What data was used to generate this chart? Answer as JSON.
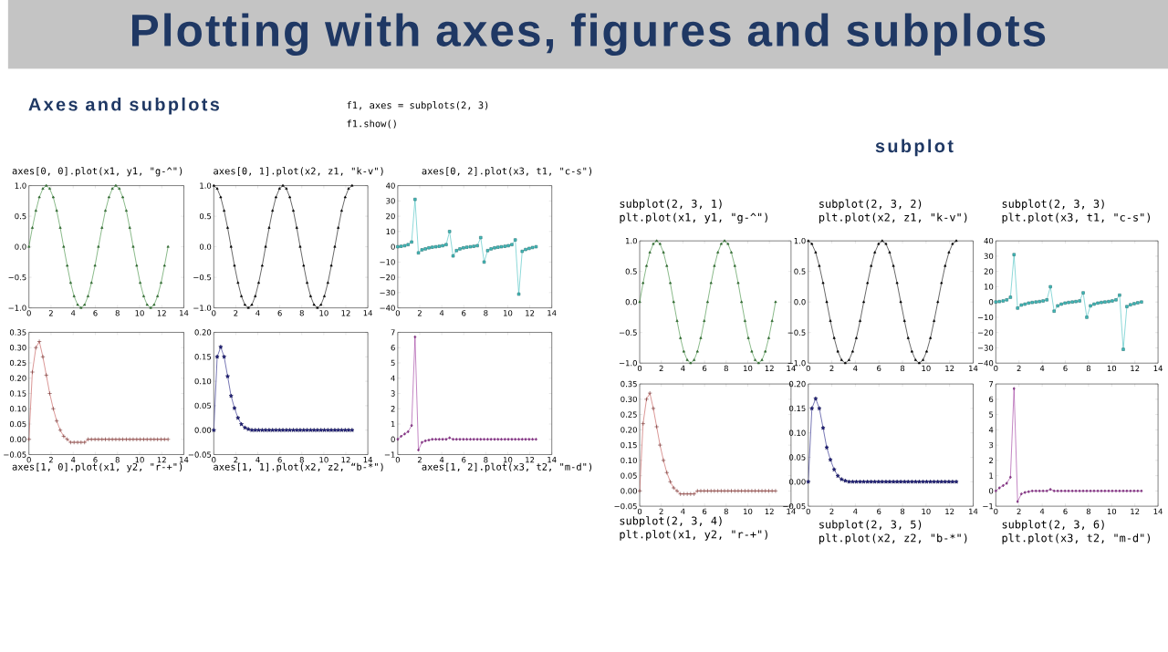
{
  "chart_data": [
    {
      "type": "other",
      "title": "Plotting with axes, figures and subplots",
      "annotations": [
        "Axes and subplots",
        "f1, axes = subplots(2, 3)",
        "f1.show()",
        "subplot"
      ]
    },
    {
      "type": "line",
      "title": "axes[0, 0].plot(x1, y1, \"g-^\")",
      "marker": "triangle",
      "xlim": [
        0,
        14
      ],
      "ylim": [
        -1,
        1
      ],
      "xticks": [
        0,
        2,
        4,
        6,
        8,
        10,
        12,
        14
      ],
      "yticks": [
        {
          "value": -1,
          "label": "−1.0"
        },
        {
          "value": -0.5,
          "label": "−0.5"
        },
        {
          "value": 0,
          "label": "0.0"
        },
        {
          "value": 0.5,
          "label": "0.5"
        },
        {
          "value": 1,
          "label": "1.0"
        }
      ],
      "x": [
        0,
        0.31,
        0.63,
        0.94,
        1.26,
        1.57,
        1.88,
        2.2,
        2.51,
        2.83,
        3.14,
        3.46,
        3.77,
        4.08,
        4.4,
        4.71,
        5.03,
        5.34,
        5.65,
        5.97,
        6.28,
        6.6,
        6.91,
        7.23,
        7.54,
        7.85,
        8.17,
        8.48,
        8.8,
        9.11,
        9.42,
        9.74,
        10.05,
        10.37,
        10.68,
        11.0,
        11.31,
        11.62,
        11.94,
        12.25,
        12.57
      ],
      "series": [
        {
          "color": "#3a8a3a",
          "values": [
            0,
            0.31,
            0.59,
            0.81,
            0.95,
            1,
            0.95,
            0.81,
            0.59,
            0.31,
            0,
            -0.31,
            -0.59,
            -0.81,
            -0.95,
            -1,
            -0.95,
            -0.81,
            -0.59,
            -0.31,
            0,
            0.31,
            0.59,
            0.81,
            0.95,
            1,
            0.95,
            0.81,
            0.59,
            0.31,
            0,
            -0.31,
            -0.59,
            -0.81,
            -0.95,
            -1,
            -0.95,
            -0.81,
            -0.59,
            -0.31,
            0
          ]
        }
      ]
    },
    {
      "type": "line",
      "title": "axes[0, 1].plot(x2, z1, \"k-v\")",
      "marker": "triangle_down",
      "xlim": [
        0,
        14
      ],
      "ylim": [
        -1,
        1
      ],
      "xticks": [
        0,
        2,
        4,
        6,
        8,
        10,
        12,
        14
      ],
      "yticks": [
        {
          "value": -1,
          "label": "−1.0"
        },
        {
          "value": -0.5,
          "label": "−0.5"
        },
        {
          "value": 0,
          "label": "0.0"
        },
        {
          "value": 0.5,
          "label": "0.5"
        },
        {
          "value": 1,
          "label": "1.0"
        }
      ],
      "x": [
        0,
        0.31,
        0.63,
        0.94,
        1.26,
        1.57,
        1.88,
        2.2,
        2.51,
        2.83,
        3.14,
        3.46,
        3.77,
        4.08,
        4.4,
        4.71,
        5.03,
        5.34,
        5.65,
        5.97,
        6.28,
        6.6,
        6.91,
        7.23,
        7.54,
        7.85,
        8.17,
        8.48,
        8.8,
        9.11,
        9.42,
        9.74,
        10.05,
        10.37,
        10.68,
        11.0,
        11.31,
        11.62,
        11.94,
        12.25,
        12.57
      ],
      "series": [
        {
          "color": "#000000",
          "values": [
            1,
            0.95,
            0.81,
            0.59,
            0.31,
            0,
            -0.31,
            -0.59,
            -0.81,
            -0.95,
            -1,
            -0.95,
            -0.81,
            -0.59,
            -0.31,
            0,
            0.31,
            0.59,
            0.81,
            0.95,
            1,
            0.95,
            0.81,
            0.59,
            0.31,
            0,
            -0.31,
            -0.59,
            -0.81,
            -0.95,
            -1,
            -0.95,
            -0.81,
            -0.59,
            -0.31,
            0,
            0.31,
            0.59,
            0.81,
            0.95,
            1
          ]
        }
      ]
    },
    {
      "type": "line",
      "title": "axes[0, 2].plot(x3, t1, \"c-s\")",
      "marker": "square",
      "xlim": [
        0,
        14
      ],
      "ylim": [
        -40,
        40
      ],
      "xticks": [
        0,
        2,
        4,
        6,
        8,
        10,
        12,
        14
      ],
      "yticks": [
        {
          "value": -40,
          "label": "−40"
        },
        {
          "value": -30,
          "label": "−30"
        },
        {
          "value": -20,
          "label": "−20"
        },
        {
          "value": -10,
          "label": "−10"
        },
        0,
        10,
        20,
        30,
        40
      ],
      "x": [
        0,
        0.31,
        0.63,
        0.94,
        1.26,
        1.57,
        1.88,
        2.2,
        2.51,
        2.83,
        3.14,
        3.46,
        3.77,
        4.08,
        4.4,
        4.71,
        5.03,
        5.34,
        5.65,
        5.97,
        6.28,
        6.6,
        6.91,
        7.23,
        7.54,
        7.85,
        8.17,
        8.48,
        8.8,
        9.11,
        9.42,
        9.74,
        10.05,
        10.37,
        10.68,
        11.0,
        11.31,
        11.62,
        11.94,
        12.25,
        12.57
      ],
      "series": [
        {
          "color": "#40bfbf",
          "values": [
            0,
            0.3,
            0.7,
            1.4,
            3.1,
            31,
            -4,
            -2,
            -1.4,
            -0.7,
            -0.3,
            0,
            0.3,
            0.7,
            1.4,
            10,
            -6,
            -2.5,
            -1.4,
            -0.7,
            -0.3,
            0,
            0.3,
            0.7,
            6,
            -10,
            -2.5,
            -1.4,
            -0.7,
            -0.3,
            0,
            0.3,
            0.7,
            1.4,
            4.5,
            -31,
            -3,
            -1.8,
            -1.1,
            -0.5,
            0
          ]
        }
      ]
    },
    {
      "type": "line",
      "title": "axes[1, 0].plot(x1, y2, \"r-+\")",
      "marker": "cross",
      "xlim": [
        0,
        14
      ],
      "ylim": [
        -0.05,
        0.35
      ],
      "xticks": [
        0,
        2,
        4,
        6,
        8,
        10,
        12,
        14
      ],
      "yticks": [
        {
          "value": -0.05,
          "label": "−0.05"
        },
        {
          "value": 0,
          "label": "0.00"
        },
        0.05,
        {
          "value": 0.1,
          "label": "0.10"
        },
        0.15,
        {
          "value": 0.2,
          "label": "0.20"
        },
        0.25,
        {
          "value": 0.3,
          "label": "0.30"
        },
        0.35
      ],
      "x": [
        0,
        0.31,
        0.63,
        0.94,
        1.26,
        1.57,
        1.88,
        2.2,
        2.51,
        2.83,
        3.14,
        3.46,
        3.77,
        4.08,
        4.4,
        4.71,
        5.03,
        5.34,
        5.65,
        5.97,
        6.28,
        6.6,
        6.91,
        7.23,
        7.54,
        7.85,
        8.17,
        8.48,
        8.8,
        9.11,
        9.42,
        9.74,
        10.05,
        10.37,
        10.68,
        11.0,
        11.31,
        11.62,
        11.94,
        12.25,
        12.57
      ],
      "series": [
        {
          "color": "#c0504d",
          "values": [
            0,
            0.22,
            0.3,
            0.32,
            0.27,
            0.21,
            0.15,
            0.1,
            0.06,
            0.03,
            0.01,
            0,
            -0.01,
            -0.01,
            -0.01,
            -0.01,
            -0.01,
            0,
            0,
            0,
            0,
            0,
            0,
            0,
            0,
            0,
            0,
            0,
            0,
            0,
            0,
            0,
            0,
            0,
            0,
            0,
            0,
            0,
            0,
            0,
            0
          ]
        }
      ]
    },
    {
      "type": "line",
      "title": "axes[1, 1].plot(x2, z2, “b-*\")",
      "marker": "star",
      "xlim": [
        0,
        14
      ],
      "ylim": [
        -0.05,
        0.2
      ],
      "xticks": [
        0,
        2,
        4,
        6,
        8,
        10,
        12,
        14
      ],
      "yticks": [
        {
          "value": -0.05,
          "label": "−0.05"
        },
        {
          "value": 0,
          "label": "0.00"
        },
        0.05,
        {
          "value": 0.1,
          "label": "0.10"
        },
        0.15,
        {
          "value": 0.2,
          "label": "0.20"
        }
      ],
      "x": [
        0,
        0.31,
        0.63,
        0.94,
        1.26,
        1.57,
        1.88,
        2.2,
        2.51,
        2.83,
        3.14,
        3.46,
        3.77,
        4.08,
        4.4,
        4.71,
        5.03,
        5.34,
        5.65,
        5.97,
        6.28,
        6.6,
        6.91,
        7.23,
        7.54,
        7.85,
        8.17,
        8.48,
        8.8,
        9.11,
        9.42,
        9.74,
        10.05,
        10.37,
        10.68,
        11.0,
        11.31,
        11.62,
        11.94,
        12.25,
        12.57
      ],
      "series": [
        {
          "color": "#1a1a80",
          "values": [
            0,
            0.15,
            0.17,
            0.15,
            0.11,
            0.07,
            0.045,
            0.025,
            0.012,
            0.005,
            0.002,
            0,
            0,
            0,
            0,
            0,
            0,
            0,
            0,
            0,
            0,
            0,
            0,
            0,
            0,
            0,
            0,
            0,
            0,
            0,
            0,
            0,
            0,
            0,
            0,
            0,
            0,
            0,
            0,
            0,
            0
          ]
        }
      ]
    },
    {
      "type": "line",
      "title": "axes[1, 2].plot(x3, t2, \"m-d\")",
      "marker": "diamond",
      "xlim": [
        0,
        14
      ],
      "ylim": [
        -1,
        7
      ],
      "xticks": [
        0,
        2,
        4,
        6,
        8,
        10,
        12,
        14
      ],
      "yticks": [
        {
          "value": -1,
          "label": "−1"
        },
        0,
        1,
        2,
        3,
        4,
        5,
        6,
        7
      ],
      "x": [
        0,
        0.31,
        0.63,
        0.94,
        1.26,
        1.57,
        1.88,
        2.2,
        2.51,
        2.83,
        3.14,
        3.46,
        3.77,
        4.08,
        4.4,
        4.71,
        5.03,
        5.34,
        5.65,
        5.97,
        6.28,
        6.6,
        6.91,
        7.23,
        7.54,
        7.85,
        8.17,
        8.48,
        8.8,
        9.11,
        9.42,
        9.74,
        10.05,
        10.37,
        10.68,
        11.0,
        11.31,
        11.62,
        11.94,
        12.25,
        12.57
      ],
      "series": [
        {
          "color": "#9b359b",
          "values": [
            0,
            0.2,
            0.35,
            0.5,
            0.9,
            6.7,
            -0.7,
            -0.2,
            -0.1,
            -0.05,
            0,
            0,
            0,
            0,
            0,
            0.1,
            0,
            0,
            0,
            0,
            0,
            0,
            0,
            0,
            0,
            0,
            0,
            0,
            0,
            0,
            0,
            0,
            0,
            0,
            0,
            0,
            0,
            0,
            0,
            0,
            0
          ]
        }
      ]
    },
    {
      "type": "line",
      "title": "subplot(2, 3, 1)",
      "subtitle": "plt.plot(x1, y1, \"g-^\")",
      "marker": "triangle",
      "xlim": [
        0,
        14
      ],
      "ylim": [
        -1,
        1
      ],
      "xticks": [
        0,
        2,
        4,
        6,
        8,
        10,
        12,
        14
      ],
      "yticks": [
        {
          "value": -1,
          "label": "−1.0"
        },
        {
          "value": -0.5,
          "label": "−0.5"
        },
        {
          "value": 0,
          "label": "0.0"
        },
        {
          "value": 0.5,
          "label": "0.5"
        },
        {
          "value": 1,
          "label": "1.0"
        }
      ],
      "x": [
        0,
        0.31,
        0.63,
        0.94,
        1.26,
        1.57,
        1.88,
        2.2,
        2.51,
        2.83,
        3.14,
        3.46,
        3.77,
        4.08,
        4.4,
        4.71,
        5.03,
        5.34,
        5.65,
        5.97,
        6.28,
        6.6,
        6.91,
        7.23,
        7.54,
        7.85,
        8.17,
        8.48,
        8.8,
        9.11,
        9.42,
        9.74,
        10.05,
        10.37,
        10.68,
        11.0,
        11.31,
        11.62,
        11.94,
        12.25,
        12.57
      ],
      "series": [
        {
          "color": "#3a8a3a",
          "values": [
            0,
            0.31,
            0.59,
            0.81,
            0.95,
            1,
            0.95,
            0.81,
            0.59,
            0.31,
            0,
            -0.31,
            -0.59,
            -0.81,
            -0.95,
            -1,
            -0.95,
            -0.81,
            -0.59,
            -0.31,
            0,
            0.31,
            0.59,
            0.81,
            0.95,
            1,
            0.95,
            0.81,
            0.59,
            0.31,
            0,
            -0.31,
            -0.59,
            -0.81,
            -0.95,
            -1,
            -0.95,
            -0.81,
            -0.59,
            -0.31,
            0
          ]
        }
      ]
    },
    {
      "type": "line",
      "title": "subplot(2, 3, 2)",
      "subtitle": "plt.plot(x2, z1, \"k-v\")",
      "marker": "triangle_down",
      "xlim": [
        0,
        14
      ],
      "ylim": [
        -1,
        1
      ],
      "xticks": [
        0,
        2,
        4,
        6,
        8,
        10,
        12,
        14
      ],
      "yticks": [
        {
          "value": -1,
          "label": "−1.0"
        },
        {
          "value": -0.5,
          "label": "−0.5"
        },
        {
          "value": 0,
          "label": "0.0"
        },
        {
          "value": 0.5,
          "label": "0.5"
        },
        {
          "value": 1,
          "label": "1.0"
        }
      ],
      "x": [
        0,
        0.31,
        0.63,
        0.94,
        1.26,
        1.57,
        1.88,
        2.2,
        2.51,
        2.83,
        3.14,
        3.46,
        3.77,
        4.08,
        4.4,
        4.71,
        5.03,
        5.34,
        5.65,
        5.97,
        6.28,
        6.6,
        6.91,
        7.23,
        7.54,
        7.85,
        8.17,
        8.48,
        8.8,
        9.11,
        9.42,
        9.74,
        10.05,
        10.37,
        10.68,
        11.0,
        11.31,
        11.62,
        11.94,
        12.25,
        12.57
      ],
      "series": [
        {
          "color": "#000000",
          "values": [
            1,
            0.95,
            0.81,
            0.59,
            0.31,
            0,
            -0.31,
            -0.59,
            -0.81,
            -0.95,
            -1,
            -0.95,
            -0.81,
            -0.59,
            -0.31,
            0,
            0.31,
            0.59,
            0.81,
            0.95,
            1,
            0.95,
            0.81,
            0.59,
            0.31,
            0,
            -0.31,
            -0.59,
            -0.81,
            -0.95,
            -1,
            -0.95,
            -0.81,
            -0.59,
            -0.31,
            0,
            0.31,
            0.59,
            0.81,
            0.95,
            1
          ]
        }
      ]
    },
    {
      "type": "line",
      "title": "subplot(2, 3, 3)",
      "subtitle": "plt.plot(x3, t1, \"c-s\")",
      "marker": "square",
      "xlim": [
        0,
        14
      ],
      "ylim": [
        -40,
        40
      ],
      "xticks": [
        0,
        2,
        4,
        6,
        8,
        10,
        12,
        14
      ],
      "yticks": [
        {
          "value": -40,
          "label": "−40"
        },
        {
          "value": -30,
          "label": "−30"
        },
        {
          "value": -20,
          "label": "−20"
        },
        {
          "value": -10,
          "label": "−10"
        },
        0,
        10,
        20,
        30,
        40
      ],
      "x": [
        0,
        0.31,
        0.63,
        0.94,
        1.26,
        1.57,
        1.88,
        2.2,
        2.51,
        2.83,
        3.14,
        3.46,
        3.77,
        4.08,
        4.4,
        4.71,
        5.03,
        5.34,
        5.65,
        5.97,
        6.28,
        6.6,
        6.91,
        7.23,
        7.54,
        7.85,
        8.17,
        8.48,
        8.8,
        9.11,
        9.42,
        9.74,
        10.05,
        10.37,
        10.68,
        11.0,
        11.31,
        11.62,
        11.94,
        12.25,
        12.57
      ],
      "series": [
        {
          "color": "#40bfbf",
          "values": [
            0,
            0.3,
            0.7,
            1.4,
            3.1,
            31,
            -4,
            -2,
            -1.4,
            -0.7,
            -0.3,
            0,
            0.3,
            0.7,
            1.4,
            10,
            -6,
            -2.5,
            -1.4,
            -0.7,
            -0.3,
            0,
            0.3,
            0.7,
            6,
            -10,
            -2.5,
            -1.4,
            -0.7,
            -0.3,
            0,
            0.3,
            0.7,
            1.4,
            4.5,
            -31,
            -3,
            -1.8,
            -1.1,
            -0.5,
            0
          ]
        }
      ]
    },
    {
      "type": "line",
      "title": "subplot(2, 3, 4)",
      "subtitle": "plt.plot(x1, y2, \"r-+\")",
      "marker": "cross",
      "xlim": [
        0,
        14
      ],
      "ylim": [
        -0.05,
        0.35
      ],
      "xticks": [
        0,
        2,
        4,
        6,
        8,
        10,
        12,
        14
      ],
      "yticks": [
        {
          "value": -0.05,
          "label": "−0.05"
        },
        {
          "value": 0,
          "label": "0.00"
        },
        0.05,
        {
          "value": 0.1,
          "label": "0.10"
        },
        0.15,
        {
          "value": 0.2,
          "label": "0.20"
        },
        0.25,
        {
          "value": 0.3,
          "label": "0.30"
        },
        0.35
      ],
      "x": [
        0,
        0.31,
        0.63,
        0.94,
        1.26,
        1.57,
        1.88,
        2.2,
        2.51,
        2.83,
        3.14,
        3.46,
        3.77,
        4.08,
        4.4,
        4.71,
        5.03,
        5.34,
        5.65,
        5.97,
        6.28,
        6.6,
        6.91,
        7.23,
        7.54,
        7.85,
        8.17,
        8.48,
        8.8,
        9.11,
        9.42,
        9.74,
        10.05,
        10.37,
        10.68,
        11.0,
        11.31,
        11.62,
        11.94,
        12.25,
        12.57
      ],
      "series": [
        {
          "color": "#c0504d",
          "values": [
            0,
            0.22,
            0.3,
            0.32,
            0.27,
            0.21,
            0.15,
            0.1,
            0.06,
            0.03,
            0.01,
            0,
            -0.01,
            -0.01,
            -0.01,
            -0.01,
            -0.01,
            0,
            0,
            0,
            0,
            0,
            0,
            0,
            0,
            0,
            0,
            0,
            0,
            0,
            0,
            0,
            0,
            0,
            0,
            0,
            0,
            0,
            0,
            0,
            0
          ]
        }
      ]
    },
    {
      "type": "line",
      "title": "subplot(2, 3, 5)",
      "subtitle": "plt.plot(x2, z2, \"b-*\")",
      "marker": "star",
      "xlim": [
        0,
        14
      ],
      "ylim": [
        -0.05,
        0.2
      ],
      "xticks": [
        0,
        2,
        4,
        6,
        8,
        10,
        12,
        14
      ],
      "yticks": [
        {
          "value": -0.05,
          "label": "−0.05"
        },
        {
          "value": 0,
          "label": "0.00"
        },
        0.05,
        {
          "value": 0.1,
          "label": "0.10"
        },
        0.15,
        {
          "value": 0.2,
          "label": "0.20"
        }
      ],
      "x": [
        0,
        0.31,
        0.63,
        0.94,
        1.26,
        1.57,
        1.88,
        2.2,
        2.51,
        2.83,
        3.14,
        3.46,
        3.77,
        4.08,
        4.4,
        4.71,
        5.03,
        5.34,
        5.65,
        5.97,
        6.28,
        6.6,
        6.91,
        7.23,
        7.54,
        7.85,
        8.17,
        8.48,
        8.8,
        9.11,
        9.42,
        9.74,
        10.05,
        10.37,
        10.68,
        11.0,
        11.31,
        11.62,
        11.94,
        12.25,
        12.57
      ],
      "series": [
        {
          "color": "#1a1a80",
          "values": [
            0,
            0.15,
            0.17,
            0.15,
            0.11,
            0.07,
            0.045,
            0.025,
            0.012,
            0.005,
            0.002,
            0,
            0,
            0,
            0,
            0,
            0,
            0,
            0,
            0,
            0,
            0,
            0,
            0,
            0,
            0,
            0,
            0,
            0,
            0,
            0,
            0,
            0,
            0,
            0,
            0,
            0,
            0,
            0,
            0,
            0
          ]
        }
      ]
    },
    {
      "type": "line",
      "title": "subplot(2, 3, 6)",
      "subtitle": "plt.plot(x3, t2, \"m-d\")",
      "marker": "diamond",
      "xlim": [
        0,
        14
      ],
      "ylim": [
        -1,
        7
      ],
      "xticks": [
        0,
        2,
        4,
        6,
        8,
        10,
        12,
        14
      ],
      "yticks": [
        {
          "value": -1,
          "label": "−1"
        },
        0,
        1,
        2,
        3,
        4,
        5,
        6,
        7
      ],
      "x": [
        0,
        0.31,
        0.63,
        0.94,
        1.26,
        1.57,
        1.88,
        2.2,
        2.51,
        2.83,
        3.14,
        3.46,
        3.77,
        4.08,
        4.4,
        4.71,
        5.03,
        5.34,
        5.65,
        5.97,
        6.28,
        6.6,
        6.91,
        7.23,
        7.54,
        7.85,
        8.17,
        8.48,
        8.8,
        9.11,
        9.42,
        9.74,
        10.05,
        10.37,
        10.68,
        11.0,
        11.31,
        11.62,
        11.94,
        12.25,
        12.57
      ],
      "series": [
        {
          "color": "#9b359b",
          "values": [
            0,
            0.2,
            0.35,
            0.5,
            0.9,
            6.7,
            -0.7,
            -0.2,
            -0.1,
            -0.05,
            0,
            0,
            0,
            0,
            0,
            0.1,
            0,
            0,
            0,
            0,
            0,
            0,
            0,
            0,
            0,
            0,
            0,
            0,
            0,
            0,
            0,
            0,
            0,
            0,
            0,
            0,
            0,
            0,
            0,
            0,
            0
          ]
        }
      ]
    }
  ]
}
